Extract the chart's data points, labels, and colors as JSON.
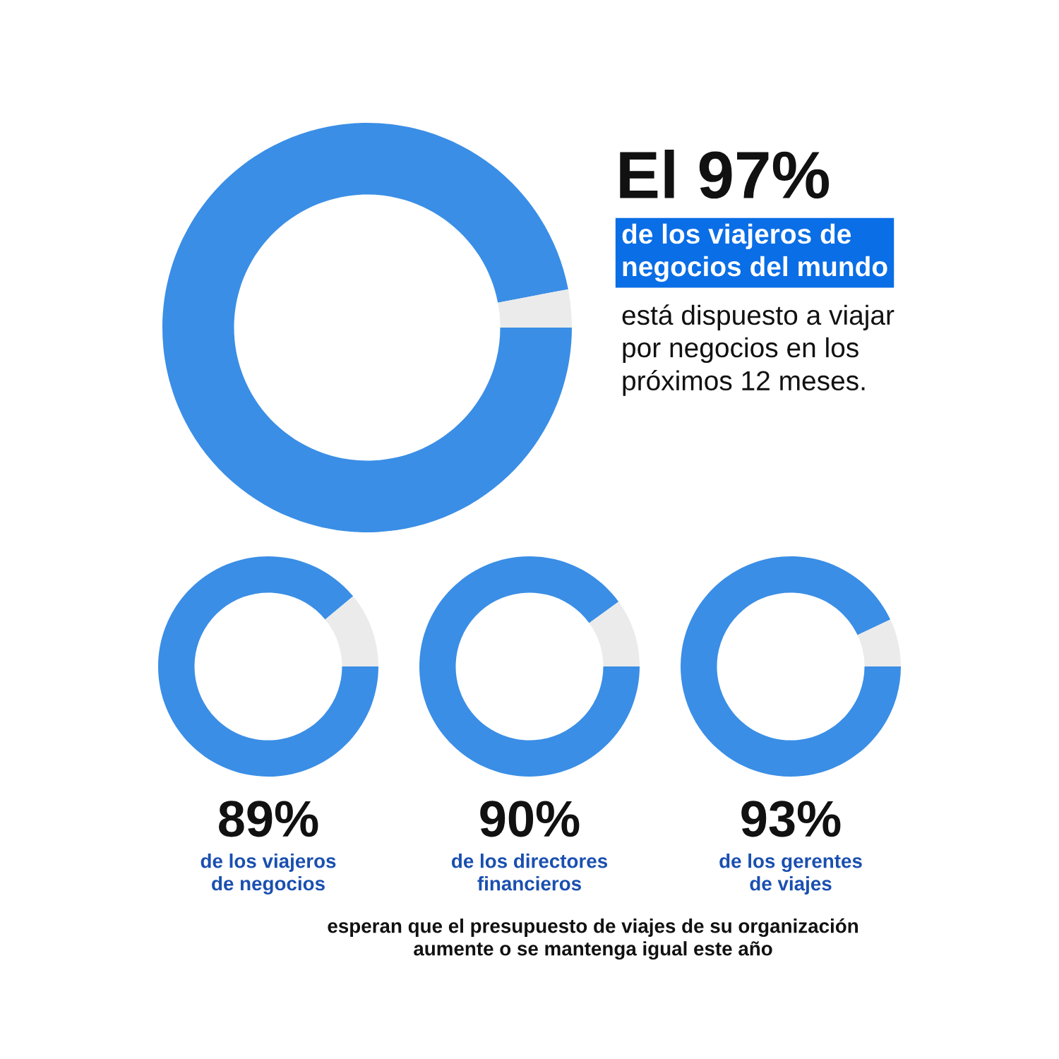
{
  "chart_data": [
    {
      "type": "donut",
      "categories": [
        null,
        null
      ],
      "values": [
        97,
        3
      ],
      "colors": [
        "#3a8ee6",
        "#ebebeb"
      ],
      "value_labels": [
        "El 97%",
        null
      ],
      "subtitle": "de los viajeros de\nnegocios del mundo",
      "annotations": [
        "está dispuesto a viajar\npor negocios en los\npróximos 12 meses."
      ]
    },
    {
      "type": "donut",
      "categories": [
        null,
        null
      ],
      "values": [
        89,
        11
      ],
      "colors": [
        "#3a8ee6",
        "#ebebeb"
      ],
      "value_labels": [
        "89%",
        null
      ],
      "subtitle": "de los viajeros\nde negocios"
    },
    {
      "type": "donut",
      "categories": [
        null,
        null
      ],
      "values": [
        90,
        10
      ],
      "colors": [
        "#3a8ee6",
        "#ebebeb"
      ],
      "value_labels": [
        "90%",
        null
      ],
      "subtitle": "de los directores\nfinancieros"
    },
    {
      "type": "donut",
      "categories": [
        null,
        null
      ],
      "values": [
        93,
        7
      ],
      "colors": [
        "#3a8ee6",
        "#ebebeb"
      ],
      "value_labels": [
        "93%",
        null
      ],
      "subtitle": "de los gerentes\nde viajes"
    },
    {
      "type": "other",
      "annotations": [
        "esperan que el presupuesto de viajes de su organización\naumente o se mantenga igual este año"
      ]
    }
  ]
}
